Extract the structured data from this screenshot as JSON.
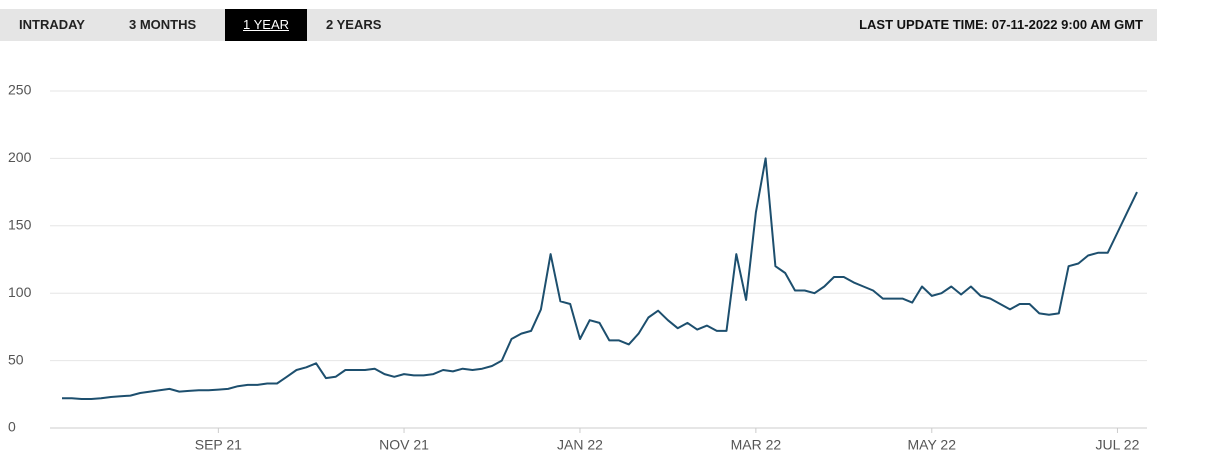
{
  "tabs": [
    "INTRADAY",
    "3 MONTHS",
    "1 YEAR",
    "2 YEARS"
  ],
  "active_tab": 2,
  "last_update": "LAST UPDATE TIME: 07-11-2022 9:00 AM GMT",
  "chart_data": {
    "type": "line",
    "categories": [
      null,
      null,
      null,
      null,
      null,
      null,
      null,
      null,
      null,
      null,
      null,
      null,
      null,
      null,
      null,
      null,
      "SEP 21",
      null,
      null,
      null,
      null,
      null,
      null,
      null,
      null,
      null,
      null,
      null,
      null,
      null,
      null,
      null,
      null,
      null,
      null,
      "NOV 21",
      null,
      null,
      null,
      null,
      null,
      null,
      null,
      null,
      null,
      null,
      null,
      null,
      null,
      null,
      null,
      null,
      null,
      "JAN 22",
      null,
      null,
      null,
      null,
      null,
      null,
      null,
      null,
      null,
      null,
      null,
      null,
      null,
      null,
      null,
      null,
      null,
      "MAR 22",
      null,
      null,
      null,
      null,
      null,
      null,
      null,
      null,
      null,
      null,
      null,
      null,
      null,
      null,
      null,
      null,
      null,
      "MAY 22",
      null,
      null,
      null,
      null,
      null,
      null,
      null,
      null,
      null,
      null,
      null,
      null,
      null,
      null,
      null,
      null,
      null,
      null,
      "JUL 22",
      null,
      null
    ],
    "values": [
      22,
      22,
      21.5,
      21.5,
      22,
      23,
      23.5,
      24,
      26,
      27,
      28,
      29,
      27,
      27.5,
      28,
      28,
      28.5,
      29,
      31,
      32,
      32,
      33,
      33,
      38,
      43,
      45,
      48,
      37,
      38,
      43,
      43,
      43,
      44,
      40,
      38,
      40,
      39,
      39,
      40,
      43,
      42,
      44,
      43,
      44,
      46,
      50,
      66,
      70,
      72,
      88,
      129,
      94,
      92,
      66,
      80,
      78,
      65,
      65,
      62,
      70,
      82,
      87,
      80,
      74,
      78,
      73,
      76,
      72,
      72,
      129,
      95,
      160,
      200,
      120,
      115,
      102,
      102,
      100,
      105,
      112,
      112,
      108,
      105,
      102,
      96,
      96,
      96,
      93,
      105,
      98,
      100,
      105,
      99,
      105,
      98,
      96,
      92,
      88,
      92,
      92,
      85,
      84,
      85,
      120,
      122,
      128,
      130,
      130,
      145,
      160,
      175
    ],
    "color": "#1d4f6e",
    "ylim": [
      0,
      250
    ],
    "yticks": [
      0,
      50,
      100,
      150,
      200,
      250
    ],
    "grid": true
  }
}
